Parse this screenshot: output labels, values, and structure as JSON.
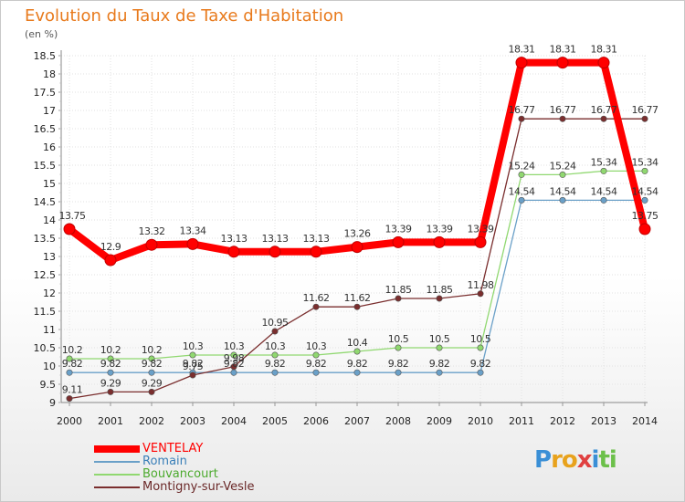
{
  "header": {
    "title": "Evolution du Taux de Taxe d'Habitation",
    "subtitle": "(en %)"
  },
  "logo": {
    "text": "Proxiti",
    "letters": [
      {
        "ch": "P",
        "color": "#3a8fd6"
      },
      {
        "ch": "r",
        "color": "#e8a21c"
      },
      {
        "ch": "o",
        "color": "#e8a21c"
      },
      {
        "ch": "x",
        "color": "#e04040"
      },
      {
        "ch": "i",
        "color": "#3a8fd6"
      },
      {
        "ch": "t",
        "color": "#6cc04a"
      },
      {
        "ch": "i",
        "color": "#6cc04a"
      }
    ]
  },
  "chart_data": {
    "type": "line",
    "title": "Evolution du Taux de Taxe d'Habitation",
    "ylabel": "(en %)",
    "xlabel": "",
    "x": [
      "2000",
      "2001",
      "2002",
      "2003",
      "2004",
      "2005",
      "2006",
      "2007",
      "2008",
      "2009",
      "2010",
      "2011",
      "2012",
      "2013",
      "2014"
    ],
    "ylim": [
      9,
      18.5
    ],
    "yticks": [
      "9",
      "9.5",
      "10",
      "10.5",
      "11",
      "11.5",
      "12",
      "12.5",
      "13",
      "13.5",
      "14",
      "14.5",
      "15",
      "15.5",
      "16",
      "16.5",
      "17",
      "17.5",
      "18",
      "18.5"
    ],
    "grid": true,
    "legend": "bottom-left",
    "series": [
      {
        "name": "VENTELAY",
        "color": "#ff0000",
        "emphasis": true,
        "values": [
          13.75,
          12.9,
          13.32,
          13.34,
          13.13,
          13.13,
          13.13,
          13.26,
          13.39,
          13.39,
          13.39,
          18.31,
          18.31,
          18.31,
          13.75
        ],
        "labels": [
          "13.75",
          "12.9",
          "13.32",
          "13.34",
          "13.13",
          "13.13",
          "13.13",
          "13.26",
          "13.39",
          "13.39",
          "13.39",
          "18.31",
          "18.31",
          "18.31",
          "13.75"
        ]
      },
      {
        "name": "Romain",
        "color": "#6aa0c8",
        "values": [
          9.82,
          9.82,
          9.82,
          9.82,
          9.82,
          9.82,
          9.82,
          9.82,
          9.82,
          9.82,
          9.82,
          14.54,
          14.54,
          14.54,
          14.54
        ],
        "labels": [
          "9.82",
          "9.82",
          "9.82",
          "9.82",
          "9.82",
          "9.82",
          "9.82",
          "9.82",
          "9.82",
          "9.82",
          "9.82",
          "14.54",
          "14.54",
          "14.54",
          "14.54"
        ]
      },
      {
        "name": "Bouvancourt",
        "color": "#90d870",
        "values": [
          10.2,
          10.2,
          10.2,
          10.3,
          10.3,
          10.3,
          10.3,
          10.4,
          10.5,
          10.5,
          10.5,
          15.24,
          15.24,
          15.34,
          15.34
        ],
        "labels": [
          "10.2",
          "10.2",
          "10.2",
          "10.3",
          "10.3",
          "10.3",
          "10.3",
          "10.4",
          "10.5",
          "10.5",
          "10.5",
          "15.24",
          "15.24",
          "15.34",
          "15.34"
        ]
      },
      {
        "name": "Montigny-sur-Vesle",
        "color": "#7a2e2e",
        "values": [
          9.11,
          9.29,
          9.29,
          9.75,
          9.98,
          10.95,
          11.62,
          11.62,
          11.85,
          11.85,
          11.98,
          16.77,
          16.77,
          16.77,
          16.77
        ],
        "labels": [
          "9.11",
          "9.29",
          "9.29",
          "9.75",
          "9.98",
          "10.95",
          "11.62",
          "11.62",
          "11.85",
          "11.85",
          "11.98",
          "16.77",
          "16.77",
          "16.77",
          "16.77"
        ]
      }
    ]
  }
}
